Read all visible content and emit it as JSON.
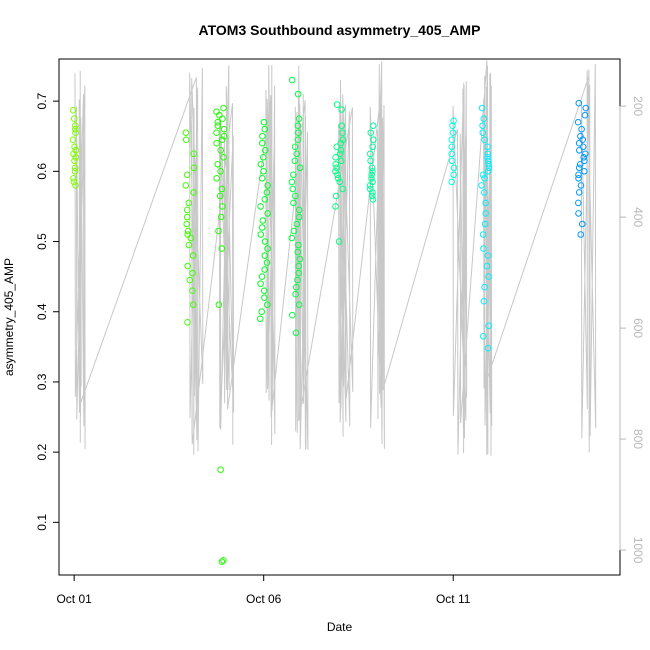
{
  "chart_data": {
    "type": "scatter",
    "title": "ATOM3 Southbound asymmetry_405_AMP",
    "xlabel": "Date",
    "ylabel": "asymmetry_405_AMP",
    "x_ticks": [
      "Oct 01",
      "Oct 06",
      "Oct 11"
    ],
    "x_tick_days": [
      1,
      6,
      11
    ],
    "xlim_days": [
      0.6,
      15.4
    ],
    "y_ticks": [
      0.1,
      0.2,
      0.3,
      0.4,
      0.5,
      0.6,
      0.7
    ],
    "ylim": [
      0.025,
      0.76
    ],
    "y2_ticks": [
      200,
      400,
      600,
      800,
      1000
    ],
    "y2lim": [
      1045,
      115
    ],
    "secondary_series_color": "#c8c8c8",
    "grid": false,
    "legend": "none",
    "clusters": [
      {
        "day": 1.0,
        "color": "#80ff00",
        "values": [
          0.687,
          0.675,
          0.665,
          0.66,
          0.655,
          0.645,
          0.635,
          0.63,
          0.625,
          0.62,
          0.615,
          0.605,
          0.6,
          0.59,
          0.585,
          0.58
        ]
      },
      {
        "day": 4.05,
        "color": "#40ff00",
        "values": [
          0.655,
          0.645,
          0.625,
          0.605,
          0.595,
          0.58,
          0.57,
          0.555,
          0.545,
          0.535,
          0.525,
          0.515,
          0.51,
          0.505,
          0.495,
          0.48,
          0.465,
          0.455,
          0.445,
          0.43,
          0.41,
          0.385
        ]
      },
      {
        "day": 4.85,
        "color": "#20ff00",
        "values": [
          0.69,
          0.685,
          0.68,
          0.675,
          0.67,
          0.665,
          0.66,
          0.655,
          0.65,
          0.645,
          0.64,
          0.63,
          0.62,
          0.61,
          0.6,
          0.59,
          0.575,
          0.565,
          0.55,
          0.535,
          0.515,
          0.49,
          0.41,
          0.175,
          0.046,
          0.044
        ]
      },
      {
        "day": 6.0,
        "color": "#00ff20",
        "values": [
          0.67,
          0.66,
          0.65,
          0.64,
          0.63,
          0.62,
          0.61,
          0.6,
          0.59,
          0.58,
          0.57,
          0.56,
          0.55,
          0.54,
          0.53,
          0.52,
          0.51,
          0.5,
          0.49,
          0.48,
          0.47,
          0.46,
          0.45,
          0.44,
          0.43,
          0.42,
          0.41,
          0.4,
          0.39
        ]
      },
      {
        "day": 6.85,
        "color": "#00ff40",
        "values": [
          0.73,
          0.71,
          0.675,
          0.665,
          0.655,
          0.645,
          0.635,
          0.625,
          0.615,
          0.605,
          0.595,
          0.585,
          0.575,
          0.565,
          0.555,
          0.545,
          0.535,
          0.525,
          0.515,
          0.505,
          0.495,
          0.485,
          0.475,
          0.465,
          0.455,
          0.445,
          0.435,
          0.425,
          0.41,
          0.395,
          0.37
        ]
      },
      {
        "day": 8.0,
        "color": "#00ff80",
        "values": [
          0.695,
          0.688,
          0.665,
          0.655,
          0.645,
          0.64,
          0.635,
          0.63,
          0.625,
          0.62,
          0.615,
          0.61,
          0.605,
          0.6,
          0.595,
          0.59,
          0.585,
          0.575,
          0.565,
          0.55,
          0.5
        ]
      },
      {
        "day": 8.85,
        "color": "#00ff9a",
        "values": [
          0.665,
          0.655,
          0.645,
          0.635,
          0.625,
          0.615,
          0.605,
          0.6,
          0.595,
          0.59,
          0.585,
          0.58,
          0.575,
          0.57,
          0.565,
          0.56
        ]
      },
      {
        "day": 11.0,
        "color": "#00ffe0",
        "values": [
          0.672,
          0.665,
          0.655,
          0.645,
          0.635,
          0.625,
          0.615,
          0.605,
          0.595,
          0.585
        ]
      },
      {
        "day": 11.85,
        "color": "#00f0ff",
        "values": [
          0.69,
          0.675,
          0.665,
          0.655,
          0.645,
          0.635,
          0.625,
          0.62,
          0.615,
          0.61,
          0.605,
          0.6,
          0.595,
          0.59,
          0.58,
          0.57,
          0.555,
          0.54,
          0.525,
          0.51,
          0.49,
          0.48,
          0.465,
          0.45,
          0.435,
          0.415,
          0.38,
          0.365,
          0.348
        ]
      },
      {
        "day": 14.4,
        "color": "#0099ff",
        "values": [
          0.697,
          0.69,
          0.68,
          0.67,
          0.66,
          0.65,
          0.645,
          0.64,
          0.635,
          0.63,
          0.625,
          0.62,
          0.615,
          0.61,
          0.605,
          0.6,
          0.595,
          0.59,
          0.58,
          0.57,
          0.555,
          0.54,
          0.525,
          0.51
        ]
      }
    ]
  }
}
